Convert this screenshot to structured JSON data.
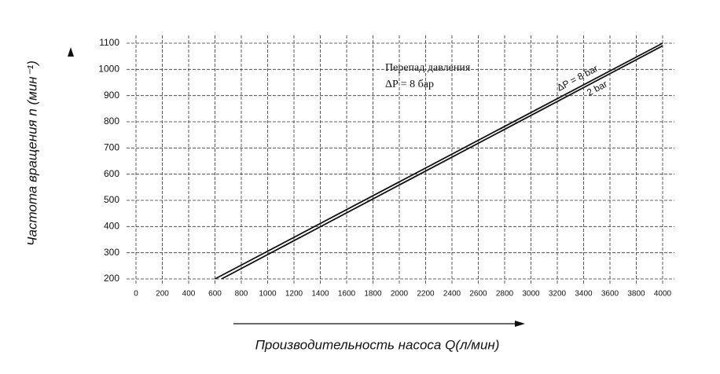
{
  "chart_data": {
    "type": "line",
    "x_label": "Производительность насоса Q(л/мин)",
    "y_label": "Частота вращения n (мин⁻¹)",
    "annotation": [
      "Перепад давления",
      "ΔP = 8 бар"
    ],
    "series": [
      {
        "name": "ΔP = 8 bar",
        "color": "#111111",
        "x": [
          600,
          4000
        ],
        "values": [
          200,
          1100
        ]
      },
      {
        "name": "2 bar",
        "color": "#111111",
        "x": [
          650,
          4000
        ],
        "values": [
          200,
          1090
        ]
      }
    ],
    "xlim": [
      0,
      4000
    ],
    "ylim": [
      200,
      1100
    ],
    "xticks": [
      0,
      200,
      400,
      600,
      800,
      1000,
      1200,
      1400,
      1600,
      1800,
      2000,
      2200,
      2400,
      2600,
      2800,
      3000,
      3200,
      3400,
      3600,
      3800,
      4000
    ],
    "yticks": [
      200,
      300,
      400,
      500,
      600,
      700,
      800,
      900,
      1000,
      1100
    ],
    "grid": true
  }
}
